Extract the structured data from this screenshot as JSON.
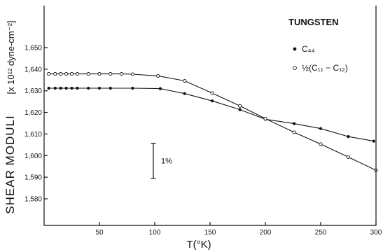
{
  "chart_data": {
    "type": "scatter",
    "title": "TUNGSTEN",
    "xlabel": "T(°K)",
    "ylabel": "SHEAR MODULI",
    "yunit_label": "[x 10¹² dyne-cm⁻²]",
    "xlim": [
      0,
      300
    ],
    "ylim": [
      1.57,
      1.66
    ],
    "xticks": [
      50,
      100,
      150,
      200,
      250,
      300
    ],
    "xtick_labels": [
      "50",
      "100",
      "150",
      "200",
      "250",
      "300"
    ],
    "yticks": [
      1.58,
      1.59,
      1.6,
      1.61,
      1.62,
      1.63,
      1.64,
      1.65
    ],
    "ytick_labels": [
      "1,580",
      "1,590",
      "1,600",
      "1,610",
      "1,620",
      "1,630",
      "1,640",
      "1,650"
    ],
    "legend_position": "top-right",
    "grid": false,
    "scale_bar": {
      "label": "1%",
      "x": 100,
      "y_from": 1.5895,
      "y_to": 1.6057
    },
    "series": [
      {
        "name": "C₄₄",
        "marker": "filled-circle",
        "x": [
          4.2,
          10,
          15,
          20,
          25,
          30,
          40,
          50,
          60,
          80,
          105,
          127,
          152,
          177,
          200,
          226,
          250,
          275,
          298
        ],
        "y": [
          1.6312,
          1.6312,
          1.6312,
          1.6312,
          1.6312,
          1.6312,
          1.6312,
          1.6312,
          1.6312,
          1.6312,
          1.631,
          1.6287,
          1.6253,
          1.6213,
          1.6168,
          1.6148,
          1.6125,
          1.6088,
          1.6067
        ]
      },
      {
        "name": "½(C₁₁ − C₁₂)",
        "marker": "open-circle",
        "x": [
          4.2,
          10,
          15,
          20,
          25,
          30,
          40,
          50,
          60,
          70,
          80,
          103,
          127,
          152,
          177,
          200,
          226,
          250,
          275,
          300
        ],
        "y": [
          1.6378,
          1.6378,
          1.6378,
          1.6378,
          1.6378,
          1.6378,
          1.6378,
          1.6378,
          1.6378,
          1.6378,
          1.6377,
          1.6369,
          1.6346,
          1.6289,
          1.623,
          1.6171,
          1.6108,
          1.6053,
          1.5993,
          1.5932
        ]
      }
    ]
  }
}
